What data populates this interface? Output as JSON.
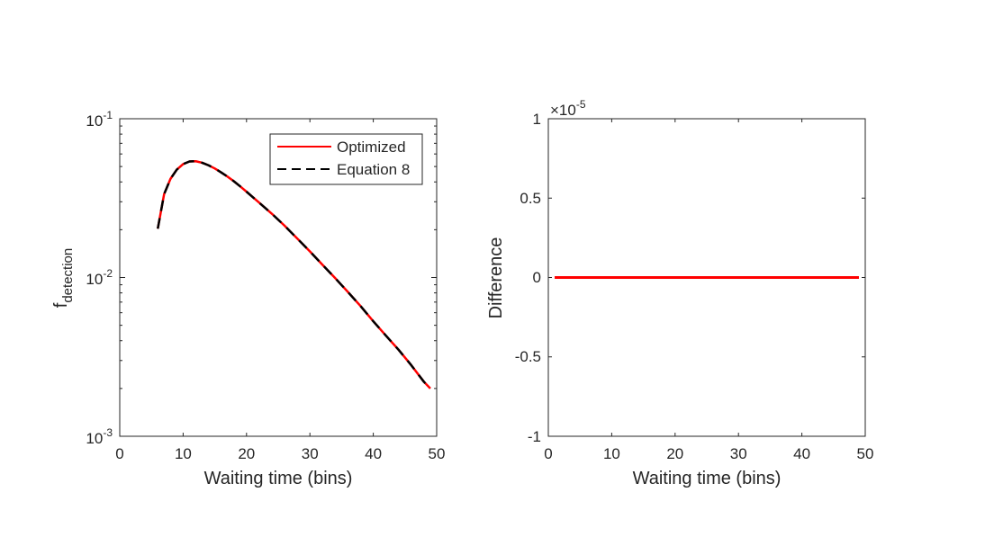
{
  "chart_data": [
    {
      "type": "line",
      "title": "",
      "xlabel": "Waiting time (bins)",
      "ylabel_main": "f",
      "ylabel_sub": "detection",
      "xlim": [
        0,
        50
      ],
      "ylim": [
        0.001,
        0.1
      ],
      "yscale": "log",
      "xticks": [
        "0",
        "10",
        "20",
        "30",
        "40",
        "50"
      ],
      "yticks": [
        {
          "base": "10",
          "exp": "-1"
        },
        {
          "base": "10",
          "exp": "-2"
        },
        {
          "base": "10",
          "exp": "-3"
        }
      ],
      "legend_position": "top-right",
      "series": [
        {
          "name": "Optimized",
          "color": "#ff0000",
          "style": "solid",
          "x": [
            6,
            7,
            8,
            9,
            10,
            11,
            12,
            13,
            14,
            15,
            16,
            17,
            18,
            19,
            20,
            22,
            24,
            26,
            28,
            30,
            32,
            34,
            36,
            38,
            40,
            42,
            44,
            46,
            48,
            49
          ],
          "y": [
            0.0203,
            0.0335,
            0.0418,
            0.0478,
            0.0518,
            0.0538,
            0.054,
            0.0528,
            0.0509,
            0.0486,
            0.0459,
            0.0432,
            0.0404,
            0.0375,
            0.0347,
            0.0296,
            0.0252,
            0.0212,
            0.0176,
            0.0146,
            0.012,
            0.0099,
            0.0081,
            0.0066,
            0.0053,
            0.0043,
            0.0035,
            0.0028,
            0.0022,
            0.002
          ]
        },
        {
          "name": "Equation 8",
          "color": "#000000",
          "style": "dashed",
          "x": [
            6,
            7,
            8,
            9,
            10,
            11,
            12,
            13,
            14,
            15,
            16,
            17,
            18,
            19,
            20,
            22,
            24,
            26,
            28,
            30,
            32,
            34,
            36,
            38,
            40,
            42,
            44,
            46,
            48,
            49
          ],
          "y": [
            0.0203,
            0.0335,
            0.0418,
            0.0478,
            0.0518,
            0.0538,
            0.054,
            0.0528,
            0.0509,
            0.0486,
            0.0459,
            0.0432,
            0.0404,
            0.0375,
            0.0347,
            0.0296,
            0.0252,
            0.0212,
            0.0176,
            0.0146,
            0.012,
            0.0099,
            0.0081,
            0.0066,
            0.0053,
            0.0043,
            0.0035,
            0.0028,
            0.0022,
            0.002
          ]
        }
      ]
    },
    {
      "type": "line",
      "title": "",
      "xlabel": "Waiting time (bins)",
      "ylabel": "Difference",
      "xlim": [
        0,
        50
      ],
      "ylim": [
        -1,
        1
      ],
      "y_multiplier": {
        "base": "×10",
        "exp": "-5"
      },
      "xticks": [
        "0",
        "10",
        "20",
        "30",
        "40",
        "50"
      ],
      "yticks": [
        "1",
        "0.5",
        "0",
        "-0.5",
        "-1"
      ],
      "series": [
        {
          "color": "#ff0000",
          "style": "solid",
          "x": [
            1,
            49
          ],
          "y": [
            0,
            0
          ]
        }
      ]
    }
  ]
}
